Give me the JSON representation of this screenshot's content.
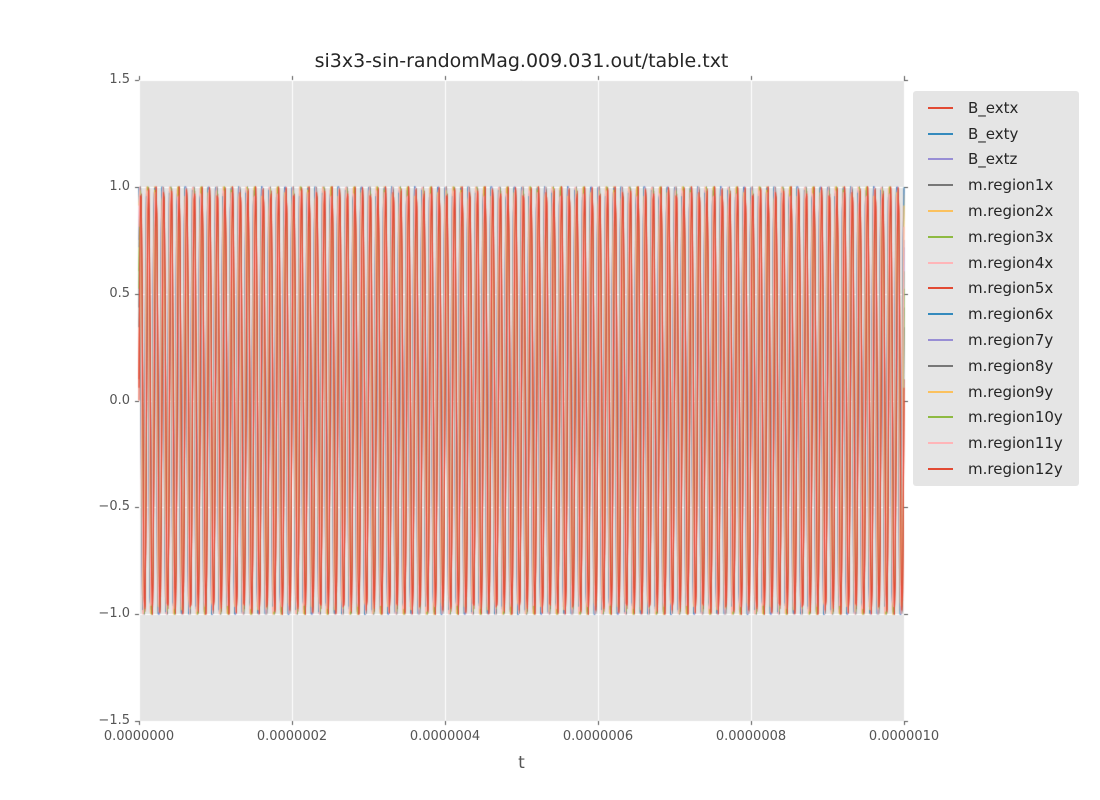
{
  "chart_data": {
    "type": "line",
    "title": "si3x3-sin-randomMag.009.031.out/table.txt",
    "xlabel": "t",
    "ylabel": "",
    "xlim": [
      0,
      1e-06
    ],
    "ylim": [
      -1.5,
      1.5
    ],
    "xticks": {
      "values": [
        0,
        2e-07,
        4e-07,
        6e-07,
        8e-07,
        1e-06
      ],
      "labels": [
        "0.0000000",
        "0.0000002",
        "0.0000004",
        "0.0000006",
        "0.0000008",
        "0.0000010"
      ]
    },
    "yticks": {
      "values": [
        1.5,
        1.0,
        0.5,
        0.0,
        -0.5,
        -1.0,
        -1.5
      ],
      "labels": [
        "1.5",
        "1.0",
        "0.5",
        "0.0",
        "−0.5",
        "−1.0",
        "−1.5"
      ]
    },
    "grid": {
      "show": true,
      "color": "#ffffff"
    },
    "legend_position": "right",
    "style": {
      "figure_background": "#ffffff",
      "plot_background": "#e5e5e5",
      "grid_color": "#ffffff",
      "tick_color": "#555555",
      "axis_text_color": "#555555",
      "title_color": "#262626",
      "legend_background": "#e5e5e5",
      "legend_text_color": "#262626"
    },
    "signal": {
      "waveform": "sine",
      "period_s": 1e-08,
      "cycles_in_view": 100,
      "samples_per_series": 1031
    },
    "series": [
      {
        "name": "B_extx",
        "color": "#e24a33",
        "amplitude": 1.0,
        "phase_rad": 0.0
      },
      {
        "name": "B_exty",
        "color": "#348abd",
        "amplitude": 1.0,
        "phase_rad": 1.5
      },
      {
        "name": "B_extz",
        "color": "#988ed5",
        "amplitude": 1.0,
        "phase_rad": 0.85
      },
      {
        "name": "m.region1x",
        "color": "#777777",
        "amplitude": 1.0,
        "phase_rad": 0.45
      },
      {
        "name": "m.region2x",
        "color": "#fbc15e",
        "amplitude": 1.0,
        "phase_rad": 1.3
      },
      {
        "name": "m.region3x",
        "color": "#8eba42",
        "amplitude": 1.0,
        "phase_rad": 0.65
      },
      {
        "name": "m.region4x",
        "color": "#ffb5b8",
        "amplitude": 1.0,
        "phase_rad": 1.7
      },
      {
        "name": "m.region5x",
        "color": "#e24a33",
        "amplitude": 1.0,
        "phase_rad": 0.1
      },
      {
        "name": "m.region6x",
        "color": "#348abd",
        "amplitude": 1.0,
        "phase_rad": 1.45
      },
      {
        "name": "m.region7y",
        "color": "#988ed5",
        "amplitude": 1.0,
        "phase_rad": 0.8
      },
      {
        "name": "m.region8y",
        "color": "#777777",
        "amplitude": 1.0,
        "phase_rad": 0.35
      },
      {
        "name": "m.region9y",
        "color": "#fbc15e",
        "amplitude": 1.0,
        "phase_rad": 1.15
      },
      {
        "name": "m.region10y",
        "color": "#8eba42",
        "amplitude": 1.0,
        "phase_rad": 0.55
      },
      {
        "name": "m.region11y",
        "color": "#ffb5b8",
        "amplitude": 1.0,
        "phase_rad": 0.95
      },
      {
        "name": "m.region12y",
        "color": "#e24a33",
        "amplitude": 1.0,
        "phase_rad": 0.06
      }
    ]
  }
}
